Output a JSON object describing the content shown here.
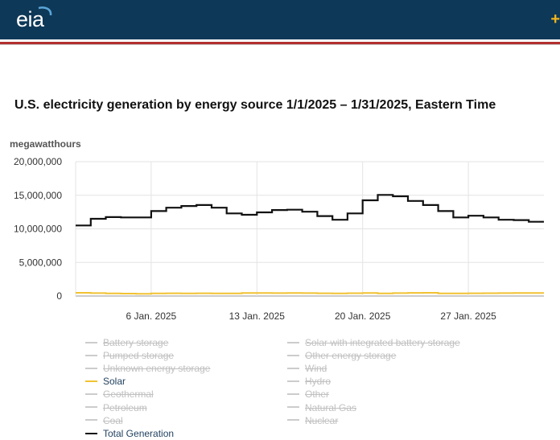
{
  "header": {
    "logo_text": "eia",
    "plus_glyph": "+",
    "background": "#0e3857",
    "accent": "#b12f2f"
  },
  "title": "U.S. electricity generation by energy source 1/1/2025 – 1/31/2025, Eastern Time",
  "units_label": "megawatthours",
  "chart_data": {
    "type": "line",
    "title": "U.S. electricity generation by energy source 1/1/2025 – 1/31/2025, Eastern Time",
    "ylabel": "megawatthours",
    "ylim": [
      0,
      20000000
    ],
    "y_ticks": [
      0,
      5000000,
      10000000,
      15000000,
      20000000
    ],
    "y_tick_labels": [
      "0",
      "5,000,000",
      "10,000,000",
      "15,000,000",
      "20,000,000"
    ],
    "x_tick_labels": [
      "6 Jan. 2025",
      "13 Jan. 2025",
      "20 Jan. 2025",
      "27 Jan. 2025"
    ],
    "x_tick_days": [
      6,
      13,
      20,
      27
    ],
    "x_range_days": [
      1,
      31
    ],
    "step": "daily",
    "grid": true,
    "series": [
      {
        "name": "Total Generation",
        "color": "#111111",
        "x": [
          1,
          2,
          3,
          4,
          5,
          6,
          7,
          8,
          9,
          10,
          11,
          12,
          13,
          14,
          15,
          16,
          17,
          18,
          19,
          20,
          21,
          22,
          23,
          24,
          25,
          26,
          27,
          28,
          29,
          30,
          31
        ],
        "values": [
          10500000,
          11500000,
          11750000,
          11700000,
          11700000,
          12650000,
          13150000,
          13400000,
          13550000,
          13150000,
          12300000,
          12100000,
          12450000,
          12800000,
          12850000,
          12550000,
          11900000,
          11350000,
          12300000,
          14250000,
          15050000,
          14850000,
          14150000,
          13550000,
          12650000,
          11700000,
          11950000,
          11700000,
          11350000,
          11300000,
          11050000
        ]
      },
      {
        "name": "Solar",
        "color": "#f1c232",
        "x": [
          1,
          2,
          3,
          4,
          5,
          6,
          7,
          8,
          9,
          10,
          11,
          12,
          13,
          14,
          15,
          16,
          17,
          18,
          19,
          20,
          21,
          22,
          23,
          24,
          25,
          26,
          27,
          28,
          29,
          30,
          31
        ],
        "values": [
          480000,
          430000,
          400000,
          360000,
          320000,
          390000,
          410000,
          400000,
          410000,
          380000,
          400000,
          440000,
          450000,
          430000,
          440000,
          430000,
          410000,
          400000,
          420000,
          450000,
          400000,
          430000,
          470000,
          480000,
          390000,
          400000,
          410000,
          420000,
          430000,
          440000,
          450000
        ]
      }
    ],
    "legend": [
      {
        "name": "Battery storage",
        "visible": false,
        "color": "#cccccc"
      },
      {
        "name": "Pumped storage",
        "visible": false,
        "color": "#cccccc"
      },
      {
        "name": "Unknown energy storage",
        "visible": false,
        "color": "#cccccc"
      },
      {
        "name": "Solar",
        "visible": true,
        "color": "#f1c232"
      },
      {
        "name": "Geothermal",
        "visible": false,
        "color": "#cccccc"
      },
      {
        "name": "Petroleum",
        "visible": false,
        "color": "#cccccc"
      },
      {
        "name": "Coal",
        "visible": false,
        "color": "#cccccc"
      },
      {
        "name": "Total Generation",
        "visible": true,
        "color": "#111111"
      },
      {
        "name": "Solar with integrated battery storage",
        "visible": false,
        "color": "#cccccc"
      },
      {
        "name": "Other energy storage",
        "visible": false,
        "color": "#cccccc"
      },
      {
        "name": "Wind",
        "visible": false,
        "color": "#cccccc"
      },
      {
        "name": "Hydro",
        "visible": false,
        "color": "#cccccc"
      },
      {
        "name": "Other",
        "visible": false,
        "color": "#cccccc"
      },
      {
        "name": "Natural Gas",
        "visible": false,
        "color": "#cccccc"
      },
      {
        "name": "Nuclear",
        "visible": false,
        "color": "#cccccc"
      }
    ]
  }
}
